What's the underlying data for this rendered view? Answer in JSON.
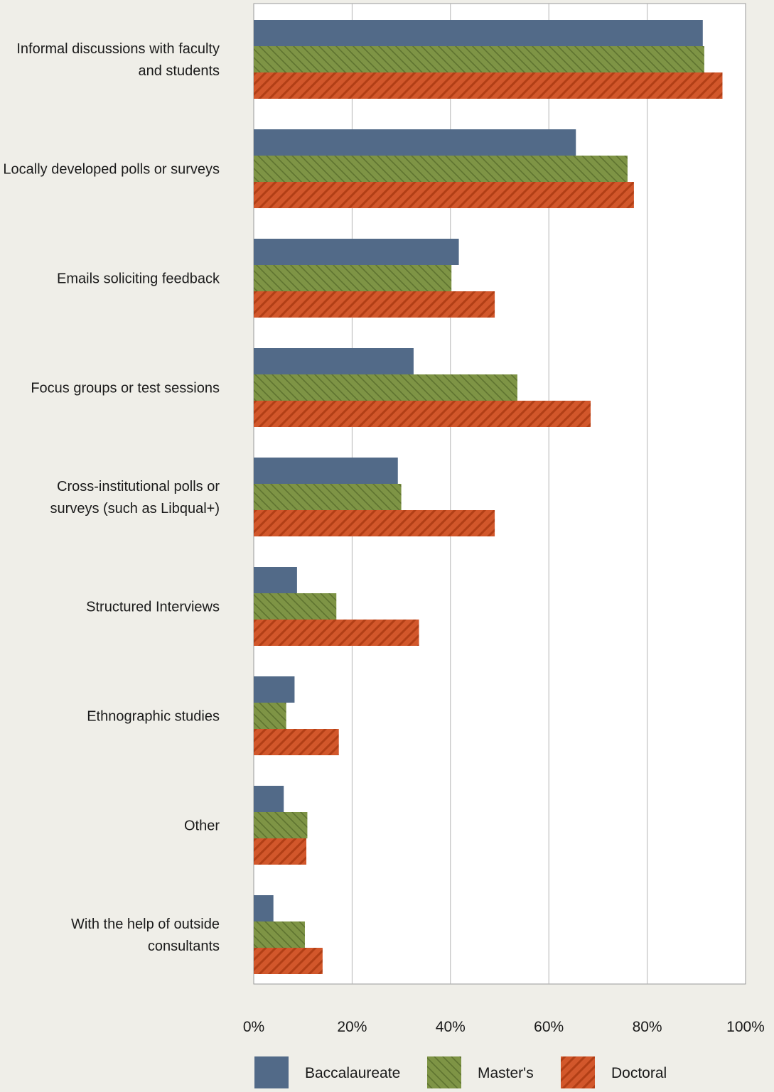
{
  "chart_data": {
    "type": "bar",
    "orientation": "horizontal",
    "title": "",
    "xlabel": "",
    "ylabel": "",
    "xlim": [
      0,
      100
    ],
    "x_ticks": [
      "0%",
      "20%",
      "40%",
      "60%",
      "80%",
      "100%"
    ],
    "grid": "vertical",
    "legend_position": "bottom",
    "categories": [
      [
        "Informal discussions with faculty",
        "and students"
      ],
      [
        "Locally developed polls or surveys"
      ],
      [
        "Emails soliciting feedback"
      ],
      [
        "Focus groups or test sessions"
      ],
      [
        "Cross-institutional polls or",
        "surveys (such as Libqual+)"
      ],
      [
        "Structured Interviews"
      ],
      [
        "Ethnographic studies"
      ],
      [
        "Other"
      ],
      [
        "With the help of outside",
        "consultants"
      ]
    ],
    "series": [
      {
        "name": "Baccalaureate",
        "color": "#526a88",
        "pattern": "solid",
        "values": [
          91.3,
          65.5,
          41.7,
          32.5,
          29.3,
          8.8,
          8.3,
          6.1,
          4.0
        ]
      },
      {
        "name": "Master's",
        "color": "#7e9445",
        "pattern": "hatch-down",
        "values": [
          91.6,
          76.0,
          40.2,
          53.6,
          30.0,
          16.8,
          6.6,
          10.9,
          10.4
        ]
      },
      {
        "name": "Doctoral",
        "color": "#d2572b",
        "pattern": "hatch-up",
        "values": [
          95.3,
          77.3,
          49.0,
          68.5,
          49.0,
          33.6,
          17.3,
          10.7,
          14.0
        ]
      }
    ]
  }
}
